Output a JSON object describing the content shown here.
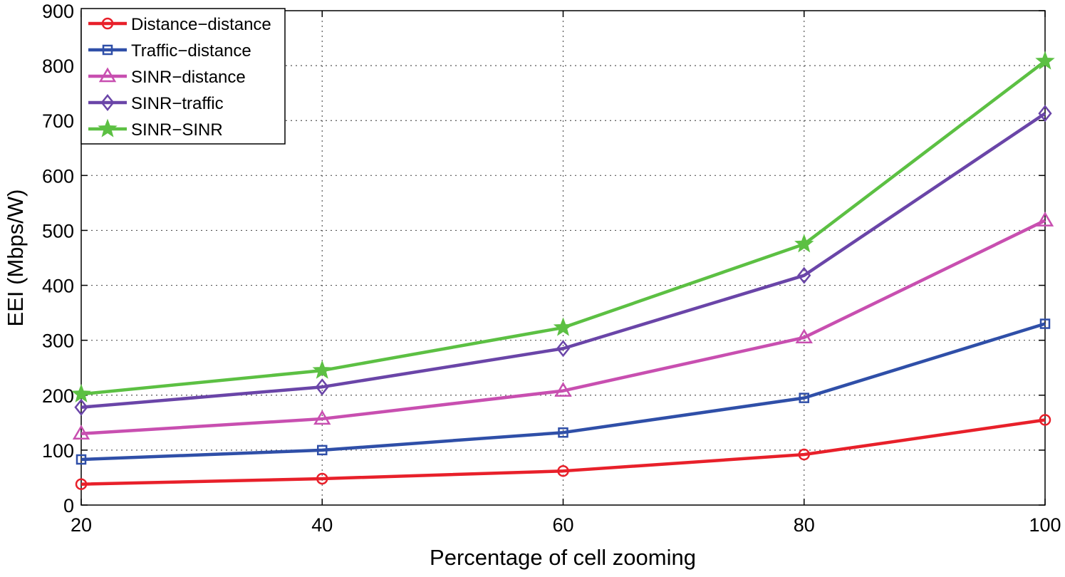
{
  "chart_data": {
    "type": "line",
    "title": "",
    "xlabel": "Percentage of cell zooming",
    "ylabel": "EEI (Mbps/W)",
    "x": [
      20,
      40,
      60,
      80,
      100
    ],
    "xlim": [
      20,
      100
    ],
    "ylim": [
      0,
      900
    ],
    "xticks": [
      20,
      40,
      60,
      80,
      100
    ],
    "yticks": [
      0,
      100,
      200,
      300,
      400,
      500,
      600,
      700,
      800,
      900
    ],
    "grid": true,
    "legend_position": "top-left",
    "series": [
      {
        "name": "Distance−distance",
        "color": "#e8202a",
        "marker": "circle",
        "values": [
          38,
          48,
          62,
          92,
          155
        ]
      },
      {
        "name": "Traffic−distance",
        "color": "#2f4fa8",
        "marker": "square",
        "values": [
          83,
          100,
          132,
          195,
          330
        ]
      },
      {
        "name": "SINR−distance",
        "color": "#c84fb0",
        "marker": "triangle",
        "values": [
          130,
          157,
          208,
          305,
          518
        ]
      },
      {
        "name": "SINR−traffic",
        "color": "#6a45a8",
        "marker": "diamond",
        "values": [
          178,
          215,
          285,
          418,
          713
        ]
      },
      {
        "name": "SINR−SINR",
        "color": "#5cc043",
        "marker": "star",
        "values": [
          202,
          245,
          323,
          475,
          808
        ]
      }
    ]
  }
}
